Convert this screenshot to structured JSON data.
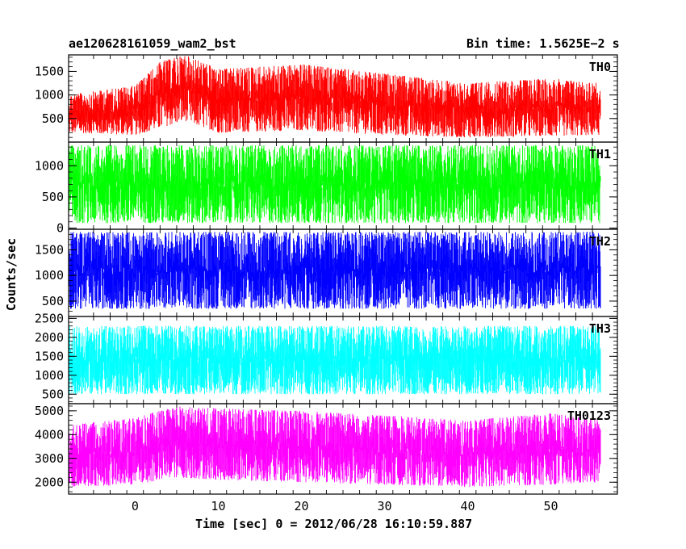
{
  "header": {
    "title": "ae120628161059_wam2_bst",
    "bin_time": "Bin time: 1.5625E−2 s"
  },
  "chart_data": {
    "type": "line",
    "xlabel": "Time [sec] 0 = 2012/06/28 16:10:59.887",
    "ylabel": "Counts/sec",
    "xlim": [
      -8,
      58
    ],
    "x_ticks": [
      0,
      10,
      20,
      30,
      40,
      50
    ],
    "x_data_range": [
      -8,
      56
    ],
    "grid": false,
    "panels": [
      {
        "name": "TH0",
        "color": "#ff0000",
        "ylim": [
          0,
          1850
        ],
        "y_ticks": [
          500,
          1000,
          1500
        ],
        "envelope": {
          "x": [
            -8,
            0,
            3,
            6,
            10,
            20,
            30,
            40,
            50,
            56
          ],
          "low": [
            200,
            150,
            300,
            450,
            200,
            250,
            150,
            100,
            130,
            150
          ],
          "high": [
            1000,
            1200,
            1700,
            1850,
            1550,
            1650,
            1450,
            1250,
            1350,
            1250
          ]
        }
      },
      {
        "name": "TH1",
        "color": "#00ff00",
        "ylim": [
          -20,
          1380
        ],
        "y_ticks": [
          0,
          500,
          1000
        ],
        "envelope": {
          "x": [
            -8,
            56
          ],
          "low": [
            80,
            80
          ],
          "high": [
            1330,
            1330
          ]
        }
      },
      {
        "name": "TH2",
        "color": "#0000ff",
        "ylim": [
          200,
          1900
        ],
        "y_ticks": [
          500,
          1000,
          1500
        ],
        "envelope": {
          "x": [
            -8,
            56
          ],
          "low": [
            350,
            350
          ],
          "high": [
            1850,
            1850
          ]
        }
      },
      {
        "name": "TH3",
        "color": "#00ffff",
        "ylim": [
          250,
          2550
        ],
        "y_ticks": [
          500,
          1000,
          1500,
          2000,
          2500
        ],
        "envelope": {
          "x": [
            -8,
            56
          ],
          "low": [
            500,
            500
          ],
          "high": [
            2300,
            2300
          ]
        }
      },
      {
        "name": "TH0123",
        "color": "#ff00ff",
        "ylim": [
          1500,
          5300
        ],
        "y_ticks": [
          2000,
          3000,
          4000,
          5000
        ],
        "envelope": {
          "x": [
            -8,
            0,
            5,
            10,
            20,
            30,
            40,
            50,
            56
          ],
          "low": [
            1800,
            1900,
            2200,
            2100,
            2000,
            1900,
            1800,
            1900,
            2000
          ],
          "high": [
            4400,
            4700,
            5200,
            5100,
            5000,
            4800,
            4600,
            4900,
            4600
          ]
        }
      }
    ]
  }
}
